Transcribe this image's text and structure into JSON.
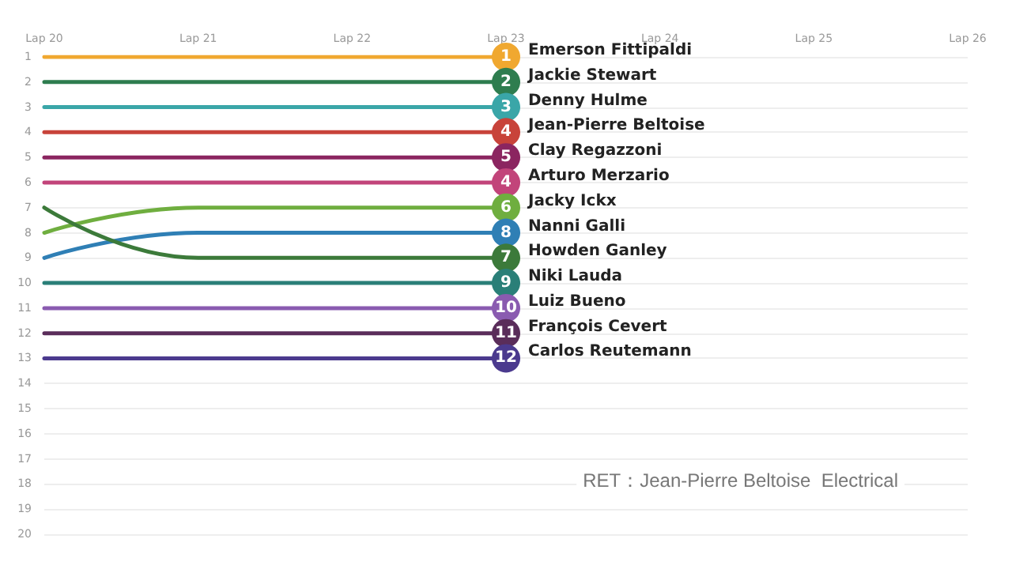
{
  "chart_data": {
    "type": "line",
    "categories": [
      "Lap 20",
      "Lap 21",
      "Lap 22",
      "Lap 23",
      "Lap 24",
      "Lap 25",
      "Lap 26"
    ],
    "ylim": [
      20,
      1
    ],
    "yticks": [
      1,
      2,
      3,
      4,
      5,
      6,
      7,
      8,
      9,
      10,
      11,
      12,
      13,
      14,
      15,
      16,
      17,
      18,
      19,
      20
    ],
    "grid": "y",
    "legend": false,
    "line_style": "solid",
    "series": [
      {
        "name": "Emerson Fittipaldi",
        "color": "#f0a830",
        "values": [
          1,
          1,
          1,
          1,
          null,
          null,
          null
        ]
      },
      {
        "name": "Jackie Stewart",
        "color": "#2e7d4f",
        "values": [
          2,
          2,
          2,
          2,
          null,
          null,
          null
        ]
      },
      {
        "name": "Denny Hulme",
        "color": "#3aa6a8",
        "values": [
          3,
          3,
          3,
          3,
          null,
          null,
          null
        ]
      },
      {
        "name": "Jean-Pierre Beltoise",
        "color": "#c8433a",
        "values": [
          4,
          4,
          4,
          4,
          null,
          null,
          null
        ]
      },
      {
        "name": "Clay Regazzoni",
        "color": "#8b2560",
        "values": [
          5,
          5,
          5,
          5,
          null,
          null,
          null
        ]
      },
      {
        "name": "Arturo Merzario",
        "color": "#c2447a",
        "values": [
          6,
          6,
          6,
          6,
          null,
          null,
          null
        ]
      },
      {
        "name": "Jacky Ickx",
        "color": "#6fae3f",
        "values": [
          8,
          7,
          7,
          7,
          null,
          null,
          null
        ]
      },
      {
        "name": "Nanni Galli",
        "color": "#2f7fb5",
        "values": [
          9,
          8,
          8,
          8,
          null,
          null,
          null
        ]
      },
      {
        "name": "Howden Ganley",
        "color": "#3c7a3a",
        "values": [
          7,
          9,
          9,
          9,
          null,
          null,
          null
        ]
      },
      {
        "name": "Niki Lauda",
        "color": "#2a7f78",
        "values": [
          10,
          10,
          10,
          10,
          null,
          null,
          null
        ]
      },
      {
        "name": "Luiz Bueno",
        "color": "#8a5bb0",
        "values": [
          11,
          11,
          11,
          11,
          null,
          null,
          null
        ]
      },
      {
        "name": "François Cevert",
        "color": "#5a2d5a",
        "values": [
          12,
          12,
          12,
          12,
          null,
          null,
          null
        ]
      },
      {
        "name": "Carlos Reutemann",
        "color": "#4b3a8e",
        "values": [
          13,
          13,
          13,
          13,
          null,
          null,
          null
        ]
      }
    ],
    "annotations": [
      {
        "text": "1",
        "x": "Lap 23",
        "y": 1
      },
      {
        "text": "2",
        "x": "Lap 23",
        "y": 2
      },
      {
        "text": "3",
        "x": "Lap 23",
        "y": 3
      },
      {
        "text": "4",
        "x": "Lap 23",
        "y": 4
      },
      {
        "text": "5",
        "x": "Lap 23",
        "y": 5
      },
      {
        "text": "4",
        "x": "Lap 23",
        "y": 6
      },
      {
        "text": "6",
        "x": "Lap 23",
        "y": 7
      },
      {
        "text": "8",
        "x": "Lap 23",
        "y": 8
      },
      {
        "text": "7",
        "x": "Lap 23",
        "y": 9
      },
      {
        "text": "9",
        "x": "Lap 23",
        "y": 10
      },
      {
        "text": "10",
        "x": "Lap 23",
        "y": 11
      },
      {
        "text": "11",
        "x": "Lap 23",
        "y": 12
      },
      {
        "text": "12",
        "x": "Lap 23",
        "y": 13
      },
      "RET：Jean-Pierre Beltoise  Electrical"
    ]
  }
}
